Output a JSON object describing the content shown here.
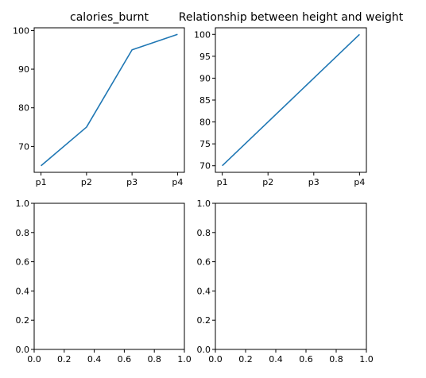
{
  "chart_data": [
    {
      "type": "line",
      "title": "calories_burnt",
      "xlabel": "",
      "ylabel": "",
      "categories": [
        "p1",
        "p2",
        "p3",
        "p4"
      ],
      "series": [
        {
          "values": [
            65,
            75,
            95,
            99
          ],
          "color": "#1f77b4"
        }
      ],
      "yticks": [
        70,
        80,
        90,
        100
      ],
      "ylim": [
        63.3,
        100.7
      ],
      "grid": false
    },
    {
      "type": "line",
      "title": "Relationship between height and weight",
      "xlabel": "",
      "ylabel": "",
      "categories": [
        "p1",
        "p2",
        "p3",
        "p4"
      ],
      "series": [
        {
          "values": [
            70,
            80,
            90,
            100
          ],
          "color": "#1f77b4"
        }
      ],
      "yticks": [
        70,
        75,
        80,
        85,
        90,
        95,
        100
      ],
      "ylim": [
        68.5,
        101.5
      ],
      "grid": false
    },
    {
      "type": "line",
      "title": "",
      "xlabel": "",
      "ylabel": "",
      "series": [],
      "xticks": [
        "0.0",
        "0.2",
        "0.4",
        "0.6",
        "0.8",
        "1.0"
      ],
      "yticks": [
        "0.0",
        "0.2",
        "0.4",
        "0.6",
        "0.8",
        "1.0"
      ],
      "xlim": [
        0,
        1
      ],
      "ylim": [
        0,
        1
      ],
      "grid": false
    },
    {
      "type": "line",
      "title": "",
      "xlabel": "",
      "ylabel": "",
      "series": [],
      "xticks": [
        "0.0",
        "0.2",
        "0.4",
        "0.6",
        "0.8",
        "1.0"
      ],
      "yticks": [
        "0.0",
        "0.2",
        "0.4",
        "0.6",
        "0.8",
        "1.0"
      ],
      "xlim": [
        0,
        1
      ],
      "ylim": [
        0,
        1
      ],
      "grid": false
    }
  ]
}
